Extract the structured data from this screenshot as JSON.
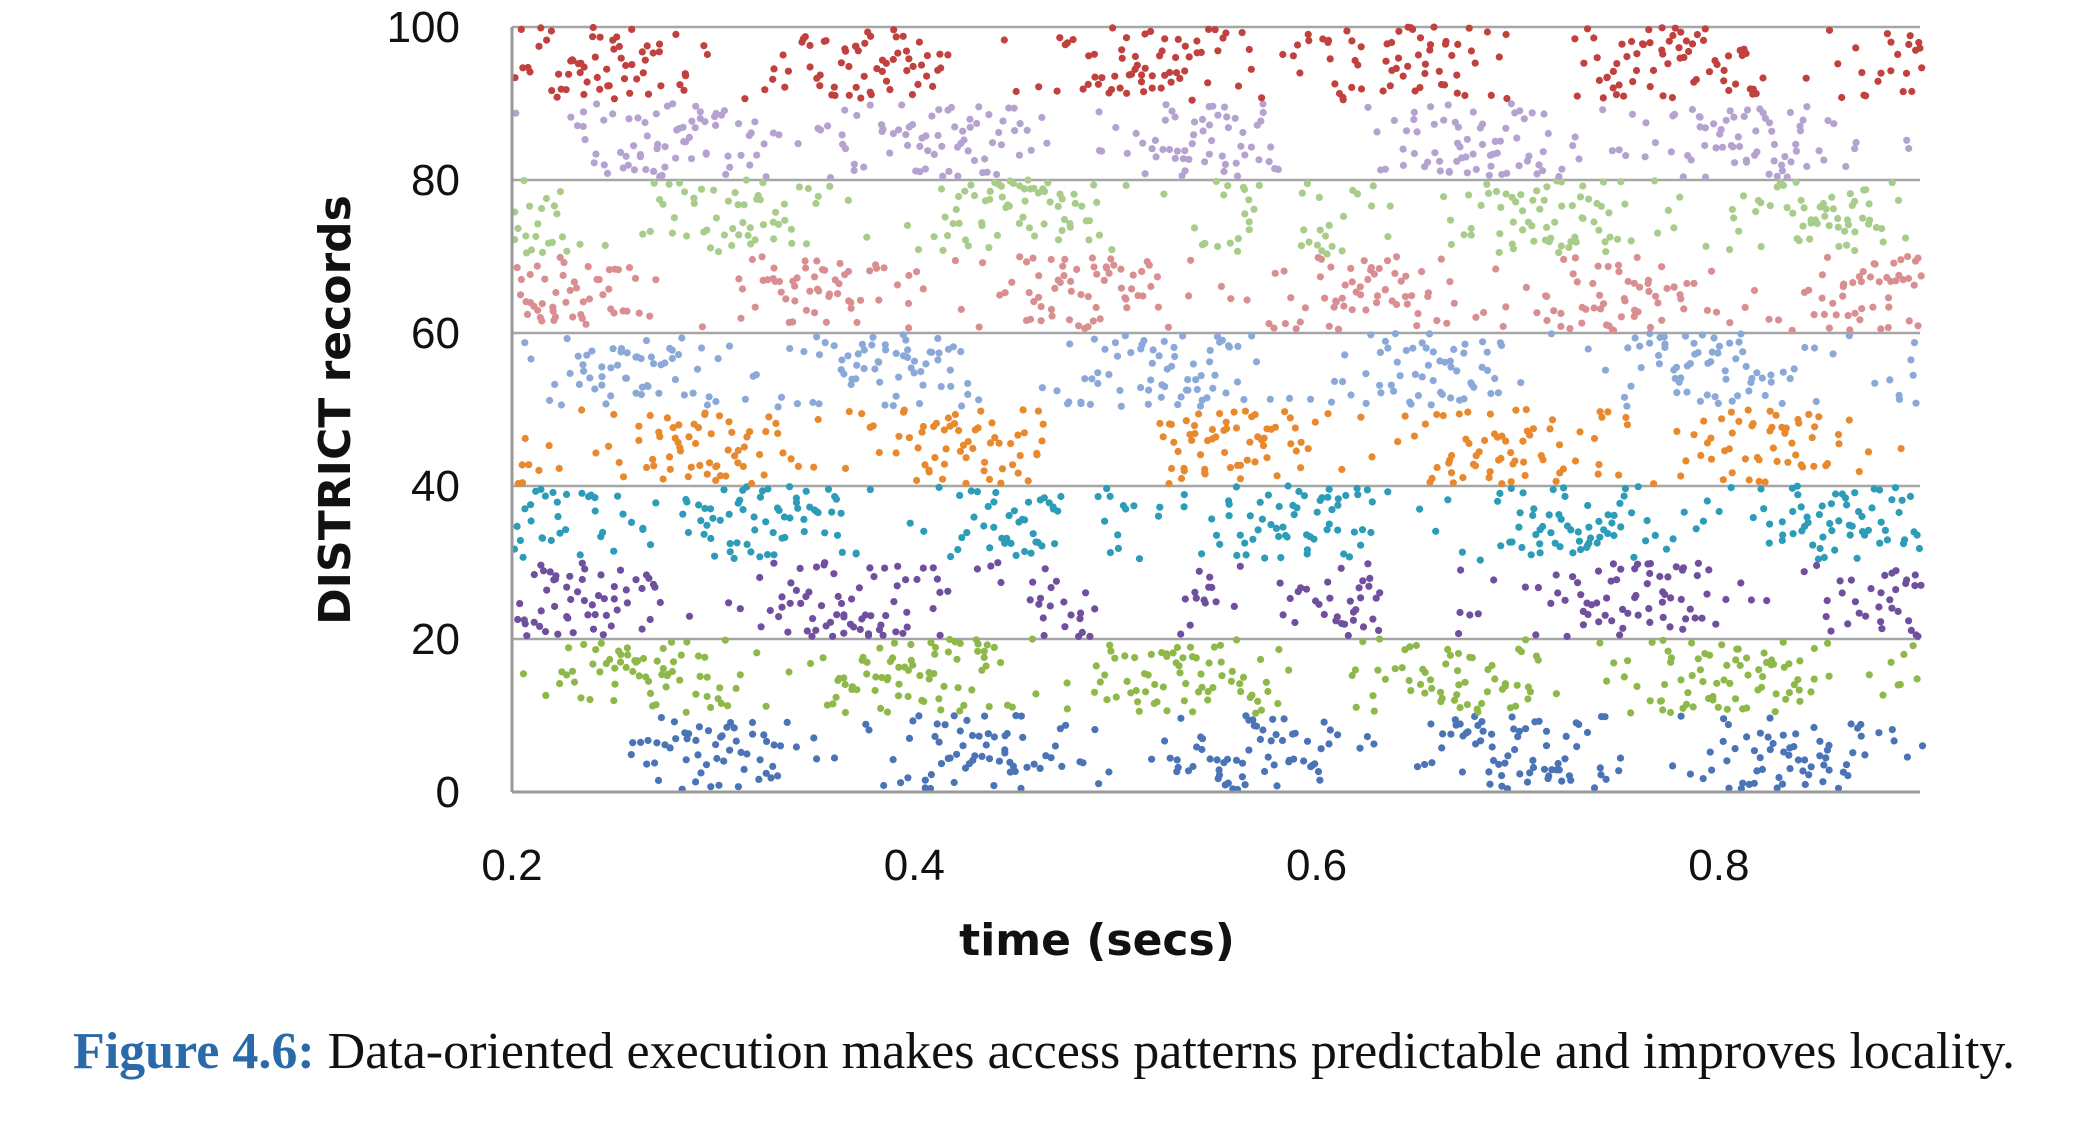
{
  "chart_data": {
    "type": "scatter",
    "xlabel": "time (secs)",
    "ylabel": "DISTRICT records",
    "xlim": [
      0.2,
      0.9
    ],
    "ylim": [
      0,
      100
    ],
    "xticks": [
      "0.2",
      "0.4",
      "0.6",
      "0.8"
    ],
    "yticks": [
      "0",
      "20",
      "40",
      "60",
      "80",
      "100"
    ],
    "grid": "horizontal",
    "legend": "none",
    "bands": [
      {
        "range": [
          0,
          10
        ],
        "color": "#4a74b6",
        "gaps": [
          [
            0.2,
            0.25
          ]
        ]
      },
      {
        "range": [
          10,
          20
        ],
        "color": "#8fb84a",
        "gaps": []
      },
      {
        "range": [
          20,
          30
        ],
        "color": "#6f4f9e",
        "gaps": [
          [
            0.49,
            0.53
          ],
          [
            0.63,
            0.67
          ]
        ]
      },
      {
        "range": [
          30,
          40
        ],
        "color": "#2c9cb8",
        "gaps": [
          [
            0.47,
            0.49
          ]
        ]
      },
      {
        "range": [
          40,
          50
        ],
        "color": "#e8892e",
        "gaps": [
          [
            0.47,
            0.51
          ]
        ]
      },
      {
        "range": [
          50,
          60
        ],
        "color": "#8ba9d8",
        "gaps": [
          [
            0.43,
            0.46
          ]
        ]
      },
      {
        "range": [
          60,
          70
        ],
        "color": "#d98f92",
        "gaps": [
          [
            0.27,
            0.29
          ]
        ]
      },
      {
        "range": [
          70,
          80
        ],
        "color": "#a8cc8a",
        "gaps": [
          [
            0.57,
            0.59
          ]
        ]
      },
      {
        "range": [
          80,
          90
        ],
        "color": "#b6a2d0",
        "gaps": [
          [
            0.58,
            0.62
          ]
        ]
      },
      {
        "range": [
          90,
          100
        ],
        "color": "#c0413e",
        "gaps": [
          [
            0.62,
            0.63
          ]
        ]
      }
    ]
  },
  "caption": {
    "label": "Figure 4.6:",
    "text": "Data-oriented execution makes access patterns predictable and improves locality."
  }
}
